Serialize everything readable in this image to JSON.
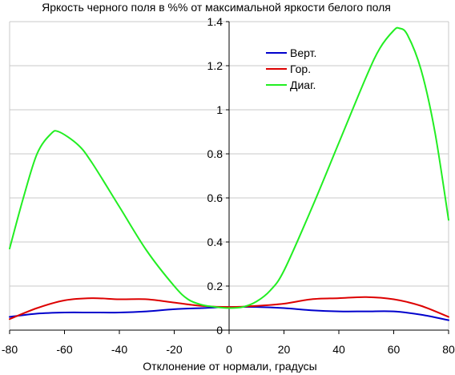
{
  "chart_data": {
    "type": "line",
    "title": "Яркость черного поля в %% от максимальной яркости белого поля",
    "xlabel": "Отклонение от нормали, градусы",
    "ylabel": "",
    "xlim": [
      -80,
      80
    ],
    "ylim": [
      0,
      1.4
    ],
    "xticks": [
      "-80",
      "-60",
      "-40",
      "-20",
      "0",
      "20",
      "40",
      "60",
      "80"
    ],
    "yticks": [
      "0",
      "0.2",
      "0.4",
      "0.6",
      "0.8",
      "1",
      "1.2",
      "1.4"
    ],
    "grid": {
      "horizontal": true,
      "vertical": false
    },
    "legend_position": "top-right",
    "series": [
      {
        "name": "Верт.",
        "color": "#0000cc",
        "x": [
          -80,
          -70,
          -60,
          -50,
          -40,
          -30,
          -20,
          -10,
          0,
          10,
          20,
          30,
          40,
          50,
          60,
          70,
          80
        ],
        "y": [
          0.06,
          0.075,
          0.08,
          0.08,
          0.08,
          0.085,
          0.095,
          0.1,
          0.105,
          0.105,
          0.1,
          0.09,
          0.085,
          0.085,
          0.085,
          0.07,
          0.045
        ]
      },
      {
        "name": "Гор.",
        "color": "#dd0000",
        "x": [
          -80,
          -70,
          -60,
          -50,
          -40,
          -30,
          -20,
          -10,
          0,
          10,
          20,
          30,
          40,
          50,
          60,
          70,
          80
        ],
        "y": [
          0.05,
          0.1,
          0.135,
          0.145,
          0.14,
          0.14,
          0.125,
          0.11,
          0.105,
          0.11,
          0.12,
          0.14,
          0.145,
          0.15,
          0.14,
          0.11,
          0.06
        ]
      },
      {
        "name": "Диаг.",
        "color": "#22ee22",
        "x": [
          -80,
          -75,
          -70,
          -65,
          -62,
          -55,
          -50,
          -40,
          -30,
          -20,
          -15,
          -10,
          -5,
          0,
          5,
          10,
          15,
          20,
          30,
          40,
          50,
          55,
          60,
          62,
          65,
          70,
          75,
          80
        ],
        "y": [
          0.37,
          0.6,
          0.8,
          0.89,
          0.9,
          0.84,
          0.76,
          0.56,
          0.36,
          0.2,
          0.14,
          0.115,
          0.105,
          0.1,
          0.105,
          0.13,
          0.18,
          0.27,
          0.55,
          0.85,
          1.15,
          1.28,
          1.36,
          1.37,
          1.34,
          1.18,
          0.9,
          0.5
        ]
      }
    ]
  }
}
